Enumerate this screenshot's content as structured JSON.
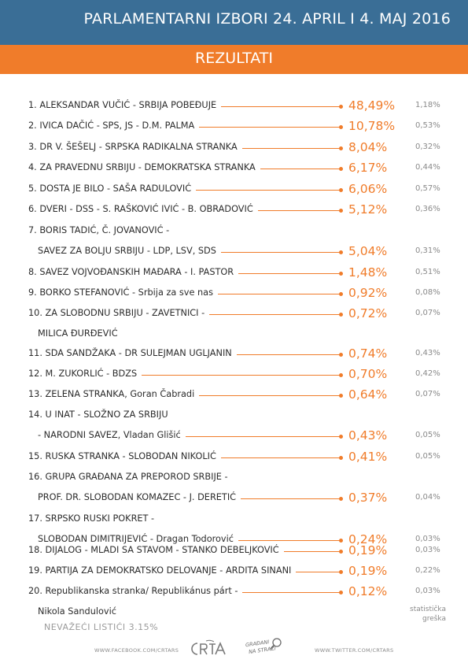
{
  "header": {
    "title": "PARLAMENTARNI IZBORI 24. APRIL I 4. MAJ 2016",
    "subtitle": "REZULTATI"
  },
  "results": [
    {
      "lines": [
        "1. ALEKSANDAR VUČIĆ - SRBIJA POBEĐUJE"
      ],
      "percent": "48,49%",
      "error": "1,18%"
    },
    {
      "lines": [
        "2. IVICA DAČIĆ - SPS, JS - D.M. PALMA"
      ],
      "percent": "10,78%",
      "error": "0,53%"
    },
    {
      "lines": [
        "3. DR V. ŠEŠELJ - SRPSKA RADIKALNA STRANKA"
      ],
      "percent": "8,04%",
      "error": "0,32%"
    },
    {
      "lines": [
        "4. ZA PRAVEDNU SRBIJU - DEMOKRATSKA STRANKA"
      ],
      "percent": "6,17%",
      "error": "0,44%"
    },
    {
      "lines": [
        "5. DOSTA JE BILO - SAŠA RADULOVIĆ"
      ],
      "percent": "6,06%",
      "error": "0,57%"
    },
    {
      "lines": [
        "6. DVERI - DSS - S. RAŠKOVIĆ IVIĆ - B. OBRADOVIĆ"
      ],
      "percent": "5,12%",
      "error": "0,36%"
    },
    {
      "lines": [
        "7. BORIS TADIĆ, Č. JOVANOVIĆ -",
        "SAVEZ ZA BOLJU SRBIJU - LDP, LSV, SDS"
      ],
      "percent": "5,04%",
      "error": "0,31%"
    },
    {
      "lines": [
        "8. SAVEZ VOJVOĐANSKIH MAĐARA - I. PASTOR"
      ],
      "percent": "1,48%",
      "error": "0,51%"
    },
    {
      "lines": [
        "9. BORKO STEFANOVIĆ - Srbija za sve nas"
      ],
      "percent": "0,92%",
      "error": "0,08%"
    },
    {
      "lines": [
        "10. ZA SLOBODNU SRBIJU - ZAVETNICI -",
        "MILICA ĐURĐEVIĆ"
      ],
      "percent": "0,72%",
      "error": "0,07%"
    },
    {
      "lines": [
        "11. SDA SANDŽAKA - DR SULEJMAN UGLJANIN"
      ],
      "percent": "0,74%",
      "error": "0,43%"
    },
    {
      "lines": [
        "12. M. ZUKORLIĆ - BDZS"
      ],
      "percent": "0,70%",
      "error": "0,42%"
    },
    {
      "lines": [
        "13. ZELENA STRANKA, Goran Čabradi"
      ],
      "percent": "0,64%",
      "error": "0,07%"
    },
    {
      "lines": [
        "14. U INAT - SLOŽNO ZA SRBIJU",
        "- NARODNI SAVEZ, Vladan Glišić"
      ],
      "percent": "0,43%",
      "error": "0,05%"
    },
    {
      "lines": [
        "15. RUSKA STRANKA - SLOBODAN NIKOLIĆ"
      ],
      "percent": "0,41%",
      "error": "0,05%"
    },
    {
      "lines": [
        "16. GRUPA GRAĐANA ZA PREPOROD SRBIJE -",
        "PROF. DR. SLOBODAN KOMAZEC - J. DERETIĆ"
      ],
      "percent": "0,37%",
      "error": "0,04%"
    },
    {
      "lines": [
        "17. SRPSKO RUSKI POKRET -",
        "SLOBODAN DIMITRIJEVIĆ - Dragan Todorović"
      ],
      "percent": "0,24%",
      "error": "0,03%"
    },
    {
      "lines": [
        "18. DIJALOG - MLADI SA STAVOM - STANKO DEBELJKOVIĆ"
      ],
      "percent": "0,19%",
      "error": "0,03%"
    },
    {
      "lines": [
        "19. PARTIJA ZA DEMOKRATSKO DELOVANJE - ARDITA SINANI"
      ],
      "percent": "0,19%",
      "error": "0,22%"
    },
    {
      "lines": [
        "20. Republikanska stranka/ Republikánus párt -",
        "Nikola Sandulović"
      ],
      "percent": "0,12%",
      "error": "0,03%"
    }
  ],
  "error_note": {
    "line1": "statistička",
    "line2": "greška"
  },
  "invalid_ballots": "NEVAŽEĆI LISTIĆI 3.15%",
  "footer": {
    "facebook": "WWW.FACEBOOK.COM/CRTARS",
    "twitter": "WWW.TWITTER.COM/CRTARS",
    "logo_crta": "CRTA",
    "logo_gradjani": "GRAĐANI NA STRAŽI"
  },
  "colors": {
    "header_blue": "#3a6e96",
    "accent_orange": "#f07c2a",
    "text_dark": "#2c2c2c",
    "text_gray": "#8a8a8a"
  }
}
